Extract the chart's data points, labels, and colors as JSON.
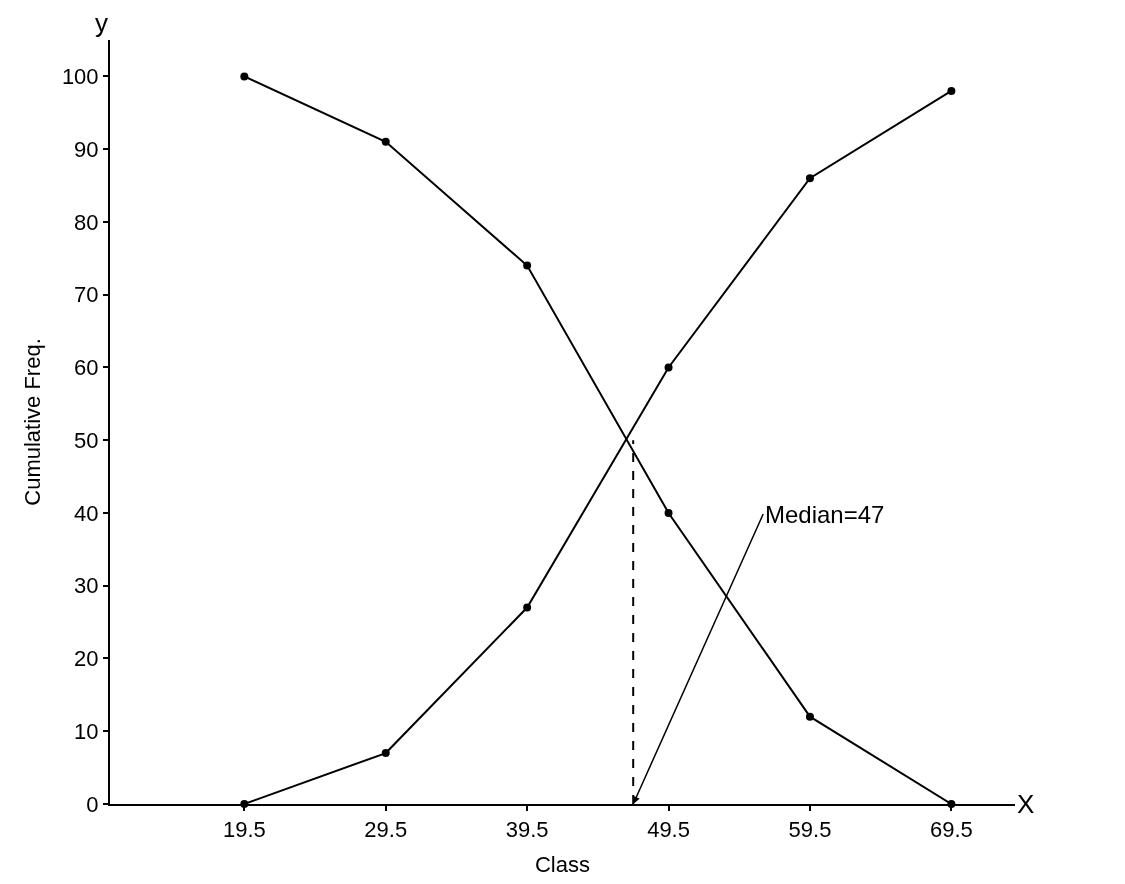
{
  "chart_data": {
    "type": "line",
    "xlabel": "Class",
    "ylabel": "Cumulative Freq.",
    "x": [
      19.5,
      29.5,
      39.5,
      49.5,
      59.5,
      69.5
    ],
    "series": [
      {
        "color": "#000000",
        "values": [
          0,
          7,
          27,
          60,
          86,
          98
        ]
      },
      {
        "color": "#000000",
        "values": [
          100,
          91,
          74,
          40,
          12,
          0
        ]
      },
      {
        "color": "#000000",
        "x": [
          47,
          47
        ],
        "values": [
          0,
          50
        ],
        "line_style": "dashed",
        "marker": "none"
      }
    ],
    "xlim": [
      10,
      74
    ],
    "ylim": [
      0,
      105
    ],
    "xticks": [
      19.5,
      29.5,
      39.5,
      49.5,
      59.5,
      69.5
    ],
    "yticks": [
      0,
      10,
      20,
      30,
      40,
      50,
      60,
      70,
      80,
      90,
      100
    ],
    "marker": "circle",
    "line_style": "solid",
    "annotations": [
      "y",
      "X",
      {
        "text": "Median=47",
        "x": 47,
        "y": 0
      }
    ]
  }
}
